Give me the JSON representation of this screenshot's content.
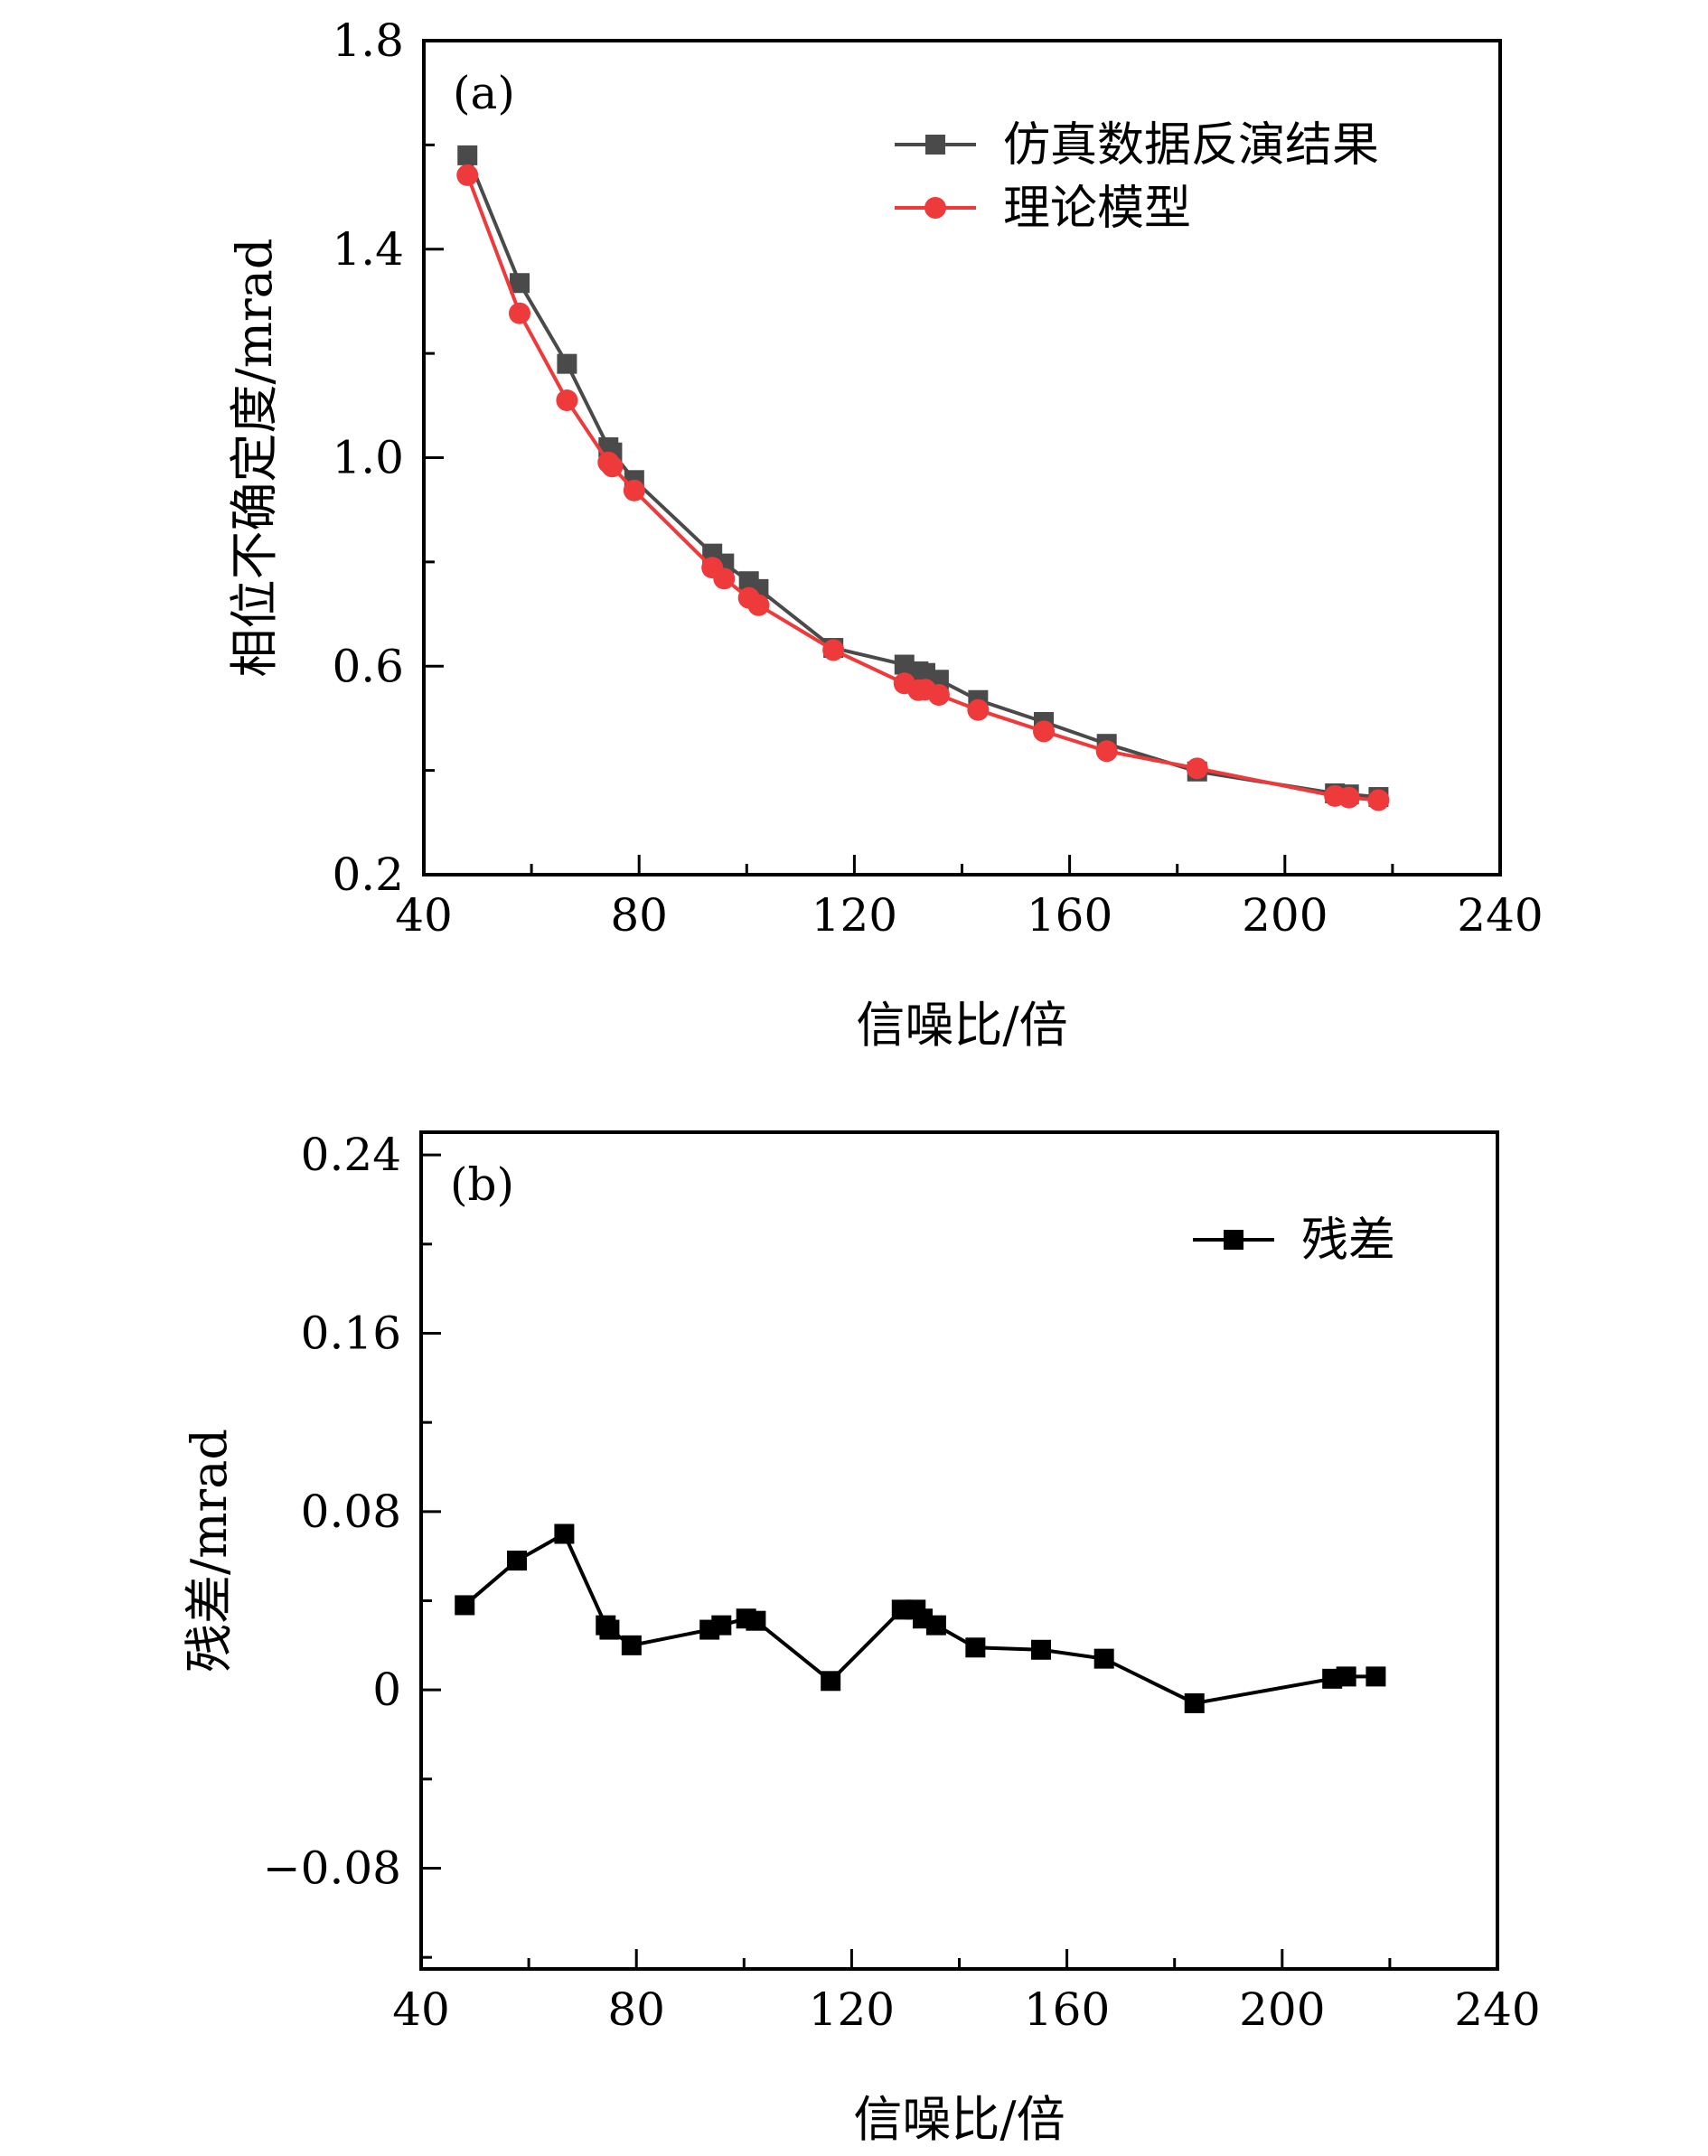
{
  "chart_data": [
    {
      "type": "line",
      "panel_label": "(a)",
      "xlabel": "信噪比/倍",
      "ylabel": "相位不确定度/mrad",
      "xlim": [
        40,
        240
      ],
      "ylim": [
        0.2,
        1.8
      ],
      "xticks": [
        "40",
        "80",
        "120",
        "160",
        "200",
        "240"
      ],
      "yticks": [
        "0.2",
        "0.6",
        "1.0",
        "1.4",
        "1.8"
      ],
      "grid": false,
      "legend": "top-right",
      "x": [
        48.1,
        57.8,
        66.6,
        74.3,
        75.0,
        79.1,
        93.6,
        95.8,
        100.4,
        102.2,
        116.1,
        129.3,
        131.9,
        133.2,
        135.7,
        143.0,
        155.2,
        166.9,
        183.7,
        209.3,
        211.9,
        217.4
      ],
      "series": [
        {
          "name": "仿真数据反演结果",
          "marker": "square",
          "color": "#4a4a4a",
          "values": [
            1.58,
            1.335,
            1.18,
            1.02,
            1.01,
            0.957,
            0.816,
            0.797,
            0.763,
            0.748,
            0.635,
            0.603,
            0.59,
            0.587,
            0.574,
            0.535,
            0.493,
            0.451,
            0.398,
            0.356,
            0.354,
            0.349
          ]
        },
        {
          "name": "理论模型",
          "marker": "circle",
          "color": "#ee3a3a",
          "values": [
            1.542,
            1.277,
            1.11,
            0.991,
            0.983,
            0.937,
            0.789,
            0.768,
            0.731,
            0.717,
            0.631,
            0.567,
            0.554,
            0.555,
            0.545,
            0.516,
            0.475,
            0.437,
            0.404,
            0.351,
            0.348,
            0.343
          ]
        }
      ]
    },
    {
      "type": "line",
      "panel_label": "(b)",
      "xlabel": "信噪比/倍",
      "ylabel": "残差/mrad",
      "xlim": [
        40,
        240
      ],
      "ylim": [
        -0.12,
        0.25
      ],
      "xticks": [
        "40",
        "80",
        "120",
        "160",
        "200",
        "240"
      ],
      "yticks": [
        "−0.08",
        "0",
        "0.08",
        "0.16",
        "0.24"
      ],
      "ytick_values": [
        -0.08,
        0,
        0.08,
        0.16,
        0.24
      ],
      "grid": false,
      "legend": "top-right",
      "x": [
        48.1,
        57.8,
        66.6,
        74.3,
        75.0,
        79.1,
        93.6,
        95.8,
        100.4,
        102.2,
        116.1,
        129.3,
        131.9,
        133.2,
        135.7,
        143.0,
        155.2,
        166.9,
        183.7,
        209.3,
        211.9,
        217.4
      ],
      "series": [
        {
          "name": "残差",
          "marker": "square",
          "color": "#000000",
          "values": [
            0.038,
            0.058,
            0.07,
            0.029,
            0.027,
            0.02,
            0.027,
            0.029,
            0.032,
            0.031,
            0.004,
            0.036,
            0.036,
            0.032,
            0.029,
            0.019,
            0.018,
            0.014,
            -0.006,
            0.005,
            0.006,
            0.006
          ]
        }
      ]
    }
  ]
}
